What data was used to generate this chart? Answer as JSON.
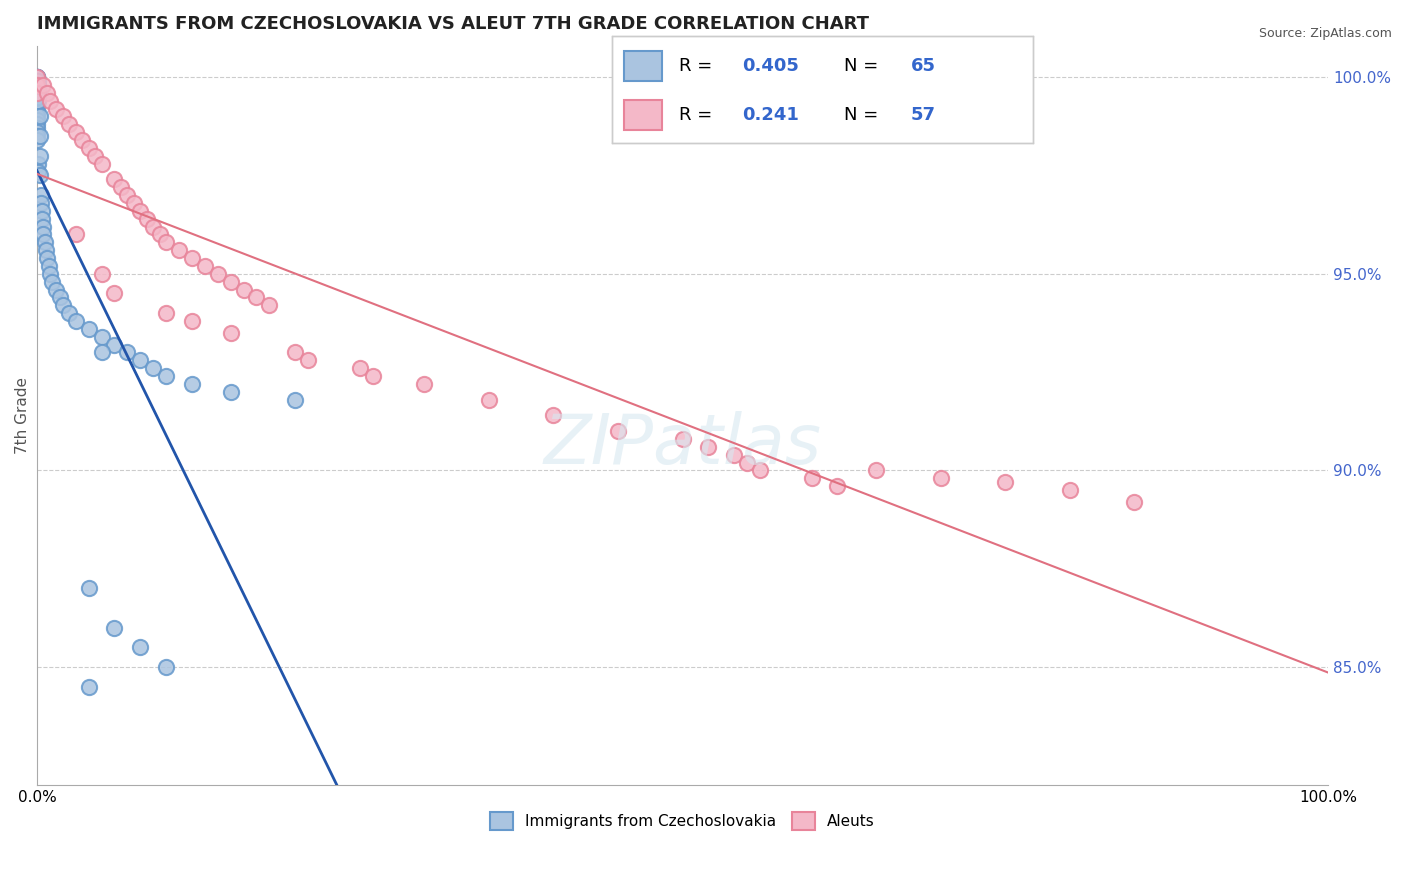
{
  "title": "IMMIGRANTS FROM CZECHOSLOVAKIA VS ALEUT 7TH GRADE CORRELATION CHART",
  "source_text": "Source: ZipAtlas.com",
  "ylabel": "7th Grade",
  "ytick_labels": [
    "100.0%",
    "95.0%",
    "90.0%",
    "85.0%"
  ],
  "ytick_values": [
    1.0,
    0.95,
    0.9,
    0.85
  ],
  "xlim": [
    0.0,
    1.0
  ],
  "ylim": [
    0.82,
    1.008
  ],
  "legend_r_values": [
    "0.405",
    "0.241"
  ],
  "legend_n_values": [
    "65",
    "57"
  ],
  "blue_face_color": "#aac4e0",
  "blue_edge_color": "#6699cc",
  "pink_face_color": "#f4b8c8",
  "pink_edge_color": "#e8849a",
  "blue_line_color": "#2255aa",
  "pink_line_color": "#e07080",
  "watermark": "ZIPatlas",
  "blue_label": "Immigrants from Czechoslovakia",
  "pink_label": "Aleuts"
}
